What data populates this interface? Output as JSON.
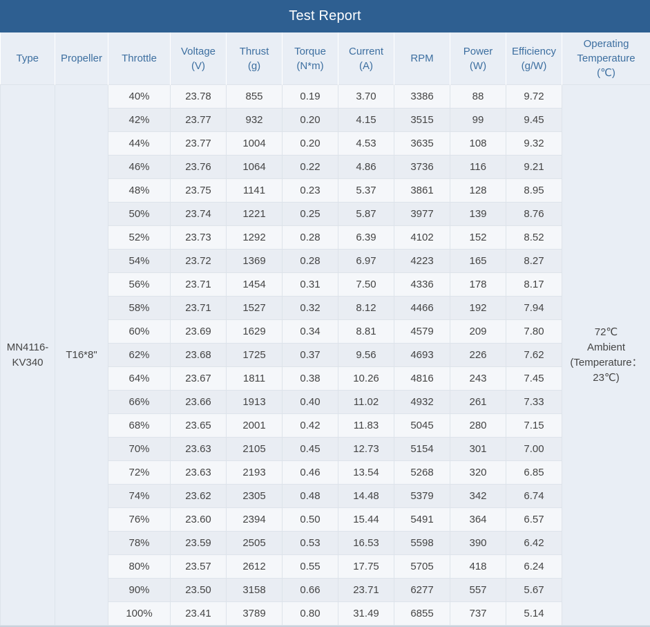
{
  "title": "Test Report",
  "headers": [
    {
      "key": "type",
      "lines": [
        "Type"
      ]
    },
    {
      "key": "propeller",
      "lines": [
        "Propeller"
      ]
    },
    {
      "key": "throttle",
      "lines": [
        "Throttle"
      ]
    },
    {
      "key": "voltage",
      "lines": [
        "Voltage",
        "(V)"
      ]
    },
    {
      "key": "thrust",
      "lines": [
        "Thrust",
        "(g)"
      ]
    },
    {
      "key": "torque",
      "lines": [
        "Torque",
        "(N*m)"
      ]
    },
    {
      "key": "current",
      "lines": [
        "Current",
        "(A)"
      ]
    },
    {
      "key": "rpm",
      "lines": [
        "RPM"
      ]
    },
    {
      "key": "power",
      "lines": [
        "Power",
        "(W)"
      ]
    },
    {
      "key": "efficiency",
      "lines": [
        "Efficiency",
        "(g/W)"
      ]
    },
    {
      "key": "temperature",
      "lines": [
        "Operating",
        "Temperature",
        "(℃)"
      ]
    }
  ],
  "type": [
    "MN4116-",
    "KV340"
  ],
  "propeller": "T16*8\"",
  "temperature": [
    "72℃",
    "Ambient",
    "(Temperature：",
    "23℃)"
  ],
  "rows": [
    [
      "40%",
      "23.78",
      "855",
      "0.19",
      "3.70",
      "3386",
      "88",
      "9.72"
    ],
    [
      "42%",
      "23.77",
      "932",
      "0.20",
      "4.15",
      "3515",
      "99",
      "9.45"
    ],
    [
      "44%",
      "23.77",
      "1004",
      "0.20",
      "4.53",
      "3635",
      "108",
      "9.32"
    ],
    [
      "46%",
      "23.76",
      "1064",
      "0.22",
      "4.86",
      "3736",
      "116",
      "9.21"
    ],
    [
      "48%",
      "23.75",
      "1141",
      "0.23",
      "5.37",
      "3861",
      "128",
      "8.95"
    ],
    [
      "50%",
      "23.74",
      "1221",
      "0.25",
      "5.87",
      "3977",
      "139",
      "8.76"
    ],
    [
      "52%",
      "23.73",
      "1292",
      "0.28",
      "6.39",
      "4102",
      "152",
      "8.52"
    ],
    [
      "54%",
      "23.72",
      "1369",
      "0.28",
      "6.97",
      "4223",
      "165",
      "8.27"
    ],
    [
      "56%",
      "23.71",
      "1454",
      "0.31",
      "7.50",
      "4336",
      "178",
      "8.17"
    ],
    [
      "58%",
      "23.71",
      "1527",
      "0.32",
      "8.12",
      "4466",
      "192",
      "7.94"
    ],
    [
      "60%",
      "23.69",
      "1629",
      "0.34",
      "8.81",
      "4579",
      "209",
      "7.80"
    ],
    [
      "62%",
      "23.68",
      "1725",
      "0.37",
      "9.56",
      "4693",
      "226",
      "7.62"
    ],
    [
      "64%",
      "23.67",
      "1811",
      "0.38",
      "10.26",
      "4816",
      "243",
      "7.45"
    ],
    [
      "66%",
      "23.66",
      "1913",
      "0.40",
      "11.02",
      "4932",
      "261",
      "7.33"
    ],
    [
      "68%",
      "23.65",
      "2001",
      "0.42",
      "11.83",
      "5045",
      "280",
      "7.15"
    ],
    [
      "70%",
      "23.63",
      "2105",
      "0.45",
      "12.73",
      "5154",
      "301",
      "7.00"
    ],
    [
      "72%",
      "23.63",
      "2193",
      "0.46",
      "13.54",
      "5268",
      "320",
      "6.85"
    ],
    [
      "74%",
      "23.62",
      "2305",
      "0.48",
      "14.48",
      "5379",
      "342",
      "6.74"
    ],
    [
      "76%",
      "23.60",
      "2394",
      "0.50",
      "15.44",
      "5491",
      "364",
      "6.57"
    ],
    [
      "78%",
      "23.59",
      "2505",
      "0.53",
      "16.53",
      "5598",
      "390",
      "6.42"
    ],
    [
      "80%",
      "23.57",
      "2612",
      "0.55",
      "17.75",
      "5705",
      "418",
      "6.24"
    ],
    [
      "90%",
      "23.50",
      "3158",
      "0.66",
      "23.71",
      "6277",
      "557",
      "5.67"
    ],
    [
      "100%",
      "23.41",
      "3789",
      "0.80",
      "31.49",
      "6855",
      "737",
      "5.14"
    ]
  ]
}
